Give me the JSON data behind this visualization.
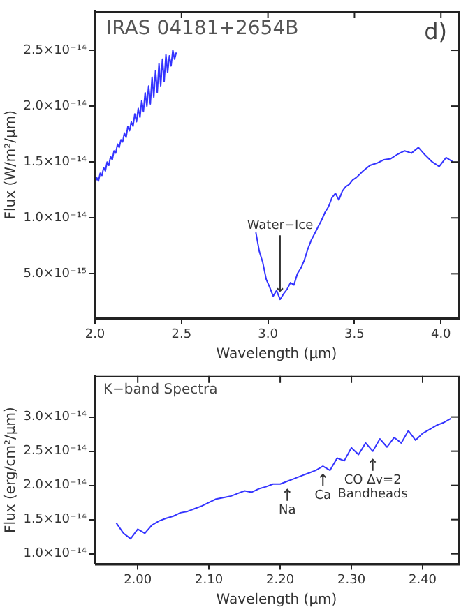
{
  "chart_data": [
    {
      "type": "line",
      "title": "IRAS 04181+2654B",
      "xlabel": "Wavelength (μm)",
      "ylabel": "Flux (W/m²/μm)",
      "marker": "none",
      "x": [
        2.0,
        2.01,
        2.02,
        2.03,
        2.04,
        2.05,
        2.06,
        2.07,
        2.08,
        2.09,
        2.1,
        2.11,
        2.12,
        2.13,
        2.14,
        2.15,
        2.16,
        2.17,
        2.18,
        2.19,
        2.2,
        2.21,
        2.22,
        2.23,
        2.24,
        2.25,
        2.26,
        2.27,
        2.28,
        2.29,
        2.3,
        2.31,
        2.32,
        2.33,
        2.34,
        2.35,
        2.36,
        2.37,
        2.38,
        2.39,
        2.4,
        2.41,
        2.42,
        2.43,
        2.44,
        2.45,
        2.46,
        2.47,
        2.7,
        2.93,
        2.95,
        2.97,
        2.99,
        3.01,
        3.03,
        3.05,
        3.07,
        3.09,
        3.11,
        3.13,
        3.15,
        3.17,
        3.19,
        3.21,
        3.23,
        3.25,
        3.27,
        3.29,
        3.31,
        3.33,
        3.35,
        3.37,
        3.39,
        3.41,
        3.43,
        3.45,
        3.47,
        3.49,
        3.51,
        3.55,
        3.59,
        3.63,
        3.67,
        3.71,
        3.75,
        3.79,
        3.83,
        3.87,
        3.91,
        3.95,
        3.99,
        4.03,
        4.07
      ],
      "series": [
        {
          "color": "#3434ff",
          "values": [
            1.3e-14,
            1.36e-14,
            1.33e-14,
            1.4e-14,
            1.38e-14,
            1.45e-14,
            1.42e-14,
            1.5e-14,
            1.47e-14,
            1.55e-14,
            1.52e-14,
            1.6e-14,
            1.58e-14,
            1.66e-14,
            1.63e-14,
            1.7e-14,
            1.68e-14,
            1.76e-14,
            1.72e-14,
            1.82e-14,
            1.78e-14,
            1.86e-14,
            1.82e-14,
            1.93e-14,
            1.86e-14,
            1.98e-14,
            1.9e-14,
            2.05e-14,
            1.95e-14,
            2.12e-14,
            2e-14,
            2.18e-14,
            2.02e-14,
            2.26e-14,
            2.08e-14,
            2.32e-14,
            2.12e-14,
            2.38e-14,
            2.18e-14,
            2.42e-14,
            2.22e-14,
            2.46e-14,
            2.3e-14,
            2.45e-14,
            2.36e-14,
            2.5e-14,
            2.42e-14,
            2.48e-14,
            null,
            8.7e-15,
            7e-15,
            6e-15,
            4.5e-15,
            3.8e-15,
            3e-15,
            3.5e-15,
            2.7e-15,
            3.2e-15,
            3.6e-15,
            4.2e-15,
            4e-15,
            5e-15,
            5.5e-15,
            6.2e-15,
            7.2e-15,
            8e-15,
            8.6e-15,
            9.2e-15,
            9.8e-15,
            1.05e-14,
            1.1e-14,
            1.18e-14,
            1.22e-14,
            1.16e-14,
            1.24e-14,
            1.28e-14,
            1.3e-14,
            1.34e-14,
            1.36e-14,
            1.42e-14,
            1.47e-14,
            1.49e-14,
            1.52e-14,
            1.53e-14,
            1.57e-14,
            1.6e-14,
            1.58e-14,
            1.63e-14,
            1.56e-14,
            1.5e-14,
            1.46e-14,
            1.54e-14,
            1.5e-14
          ]
        }
      ],
      "xlim": [
        2.0,
        4.1
      ],
      "xticks": [
        {
          "value": 2.0,
          "label": "2.0"
        },
        {
          "value": 2.5,
          "label": "2.5"
        },
        {
          "value": 3.0,
          "label": "3.0"
        },
        {
          "value": 3.5,
          "label": "3.5"
        },
        {
          "value": 4.0,
          "label": "4.0"
        }
      ],
      "ylim": [
        1e-15,
        2.85e-14
      ],
      "yticks": [
        {
          "value": 5e-15,
          "label": "5.0×10⁻¹⁵"
        },
        {
          "value": 1e-14,
          "label": "1.0×10⁻¹⁴"
        },
        {
          "value": 1.5e-14,
          "label": "1.5×10⁻¹⁴"
        },
        {
          "value": 2e-14,
          "label": "2.0×10⁻¹⁴"
        },
        {
          "value": 2.5e-14,
          "label": "2.5×10⁻¹⁴"
        }
      ],
      "annotations": [
        "d)",
        {
          "text": "Water−Ice",
          "x": 3.07,
          "y": 2.7e-15
        }
      ]
    },
    {
      "type": "line",
      "xlabel": "Wavelength (μm)",
      "ylabel": "Flux (erg/cm²/μm)",
      "marker": "none",
      "x": [
        1.97,
        1.98,
        1.99,
        2.0,
        2.01,
        2.02,
        2.03,
        2.04,
        2.05,
        2.06,
        2.07,
        2.08,
        2.09,
        2.1,
        2.11,
        2.12,
        2.13,
        2.14,
        2.15,
        2.16,
        2.17,
        2.18,
        2.19,
        2.2,
        2.21,
        2.22,
        2.23,
        2.24,
        2.25,
        2.26,
        2.27,
        2.28,
        2.29,
        2.3,
        2.31,
        2.32,
        2.33,
        2.34,
        2.35,
        2.36,
        2.37,
        2.38,
        2.39,
        2.4,
        2.41,
        2.42,
        2.43,
        2.44
      ],
      "series": [
        {
          "color": "#3434ff",
          "values": [
            1.45e-14,
            1.3e-14,
            1.22e-14,
            1.36e-14,
            1.3e-14,
            1.42e-14,
            1.48e-14,
            1.52e-14,
            1.55e-14,
            1.6e-14,
            1.62e-14,
            1.66e-14,
            1.7e-14,
            1.75e-14,
            1.8e-14,
            1.82e-14,
            1.84e-14,
            1.88e-14,
            1.92e-14,
            1.9e-14,
            1.95e-14,
            1.98e-14,
            2.02e-14,
            2.02e-14,
            2.06e-14,
            2.1e-14,
            2.14e-14,
            2.18e-14,
            2.22e-14,
            2.28e-14,
            2.22e-14,
            2.4e-14,
            2.36e-14,
            2.55e-14,
            2.45e-14,
            2.62e-14,
            2.5e-14,
            2.68e-14,
            2.56e-14,
            2.7e-14,
            2.62e-14,
            2.8e-14,
            2.66e-14,
            2.76e-14,
            2.82e-14,
            2.88e-14,
            2.92e-14,
            2.98e-14
          ]
        }
      ],
      "xlim": [
        1.94,
        2.45
      ],
      "xticks": [
        {
          "value": 2.0,
          "label": "2.00"
        },
        {
          "value": 2.1,
          "label": "2.10"
        },
        {
          "value": 2.2,
          "label": "2.20"
        },
        {
          "value": 2.3,
          "label": "2.30"
        },
        {
          "value": 2.4,
          "label": "2.40"
        }
      ],
      "ylim": [
        8.5e-15,
        3.6e-14
      ],
      "yticks": [
        {
          "value": 1e-14,
          "label": "1.0×10⁻¹⁴"
        },
        {
          "value": 1.5e-14,
          "label": "1.5×10⁻¹⁴"
        },
        {
          "value": 2e-14,
          "label": "2.0×10⁻¹⁴"
        },
        {
          "value": 2.5e-14,
          "label": "2.5×10⁻¹⁴"
        },
        {
          "value": 3e-14,
          "label": "3.0×10⁻¹⁴"
        }
      ],
      "annotations": [
        "K−band Spectra",
        {
          "text": "Na",
          "x": 2.21,
          "y": 2.06e-14
        },
        {
          "text": "Ca",
          "x": 2.26,
          "y": 2.28e-14
        },
        {
          "text": "CO Δv=2 Bandheads",
          "x": 2.33,
          "y": 2.5e-14
        }
      ]
    }
  ]
}
